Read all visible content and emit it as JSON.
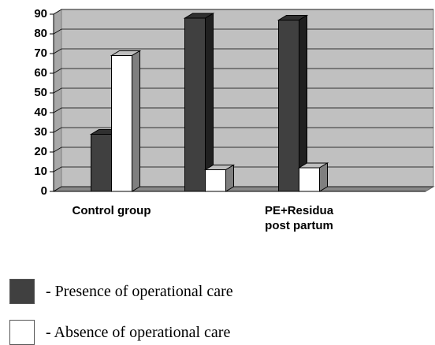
{
  "chart_data": {
    "type": "bar3d",
    "categories": [
      "Control group",
      null,
      "PE+Residua post partum"
    ],
    "series": [
      {
        "name": "- Presence of operational care",
        "color": "#404040",
        "values": [
          29,
          88,
          87
        ]
      },
      {
        "name": "- Absence of operational care",
        "color": "#ffffff",
        "values": [
          69,
          11,
          12
        ]
      }
    ],
    "ylim": [
      0,
      90
    ],
    "yticks": [
      0,
      10,
      20,
      30,
      40,
      50,
      60,
      70,
      80,
      90
    ],
    "grid": true
  }
}
